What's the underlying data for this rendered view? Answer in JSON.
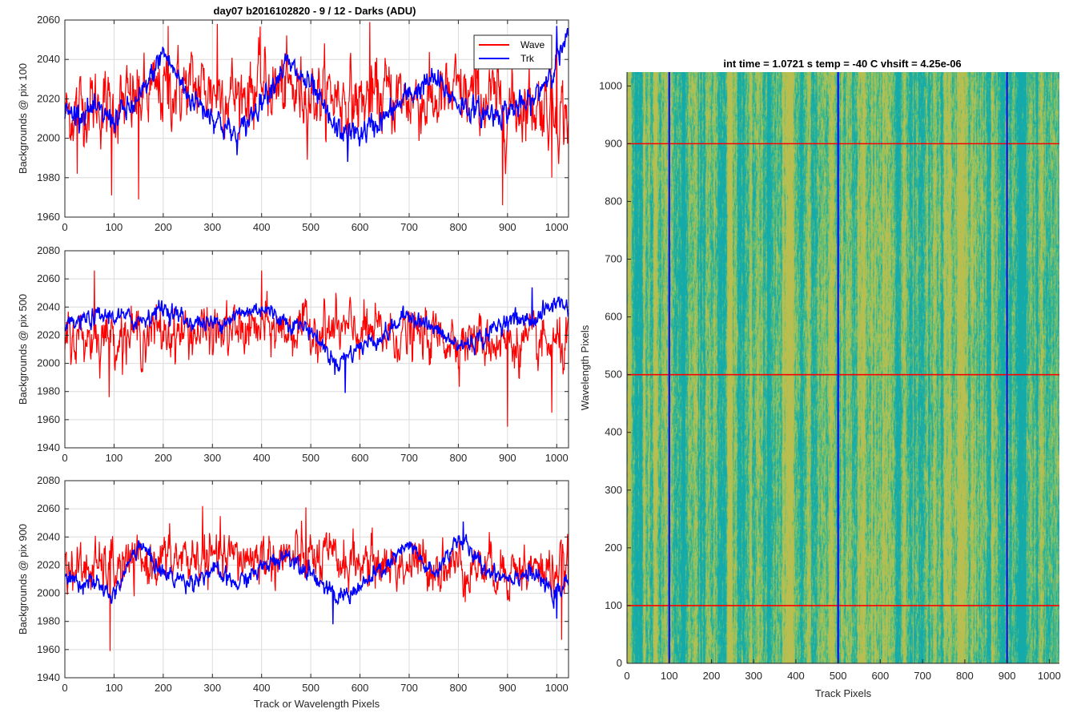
{
  "figure_title": "day07 b2016102820 - 9 / 12 - Darks (ADU)",
  "image_title": "int time = 1.0721 s    temp = -40 C    vhsift = 4.25e-06",
  "colors": {
    "wave": "#ff0000",
    "trk": "#0000ff",
    "grid": "#dcdcdc",
    "axis": "#262626"
  },
  "chart_data": [
    {
      "type": "line",
      "xlabel": "",
      "ylabel": "Backgrounds @ pix 100",
      "xlim": [
        0,
        1024
      ],
      "ylim": [
        1960,
        2060
      ],
      "xticks": [
        0,
        100,
        200,
        300,
        400,
        500,
        600,
        700,
        800,
        900,
        1000
      ],
      "yticks": [
        1960,
        1980,
        2000,
        2020,
        2040,
        2060
      ],
      "grid": true,
      "legend": {
        "placement": "top-right",
        "entries": [
          "Wave",
          "Trk"
        ]
      },
      "series": [
        {
          "name": "Wave",
          "color": "#ff0000",
          "x": [
            0,
            50,
            100,
            150,
            200,
            250,
            300,
            350,
            400,
            450,
            500,
            550,
            600,
            650,
            700,
            750,
            800,
            850,
            900,
            950,
            1000,
            1024
          ],
          "mean": [
            2012,
            2018,
            2015,
            2020,
            2024,
            2026,
            2025,
            2022,
            2028,
            2024,
            2023,
            2022,
            2018,
            2022,
            2020,
            2018,
            2022,
            2020,
            2016,
            2018,
            2015,
            2012
          ],
          "spread": 14,
          "spikes": [
            [
              25,
              1982
            ],
            [
              95,
              1971
            ],
            [
              150,
              1969
            ],
            [
              210,
              2057
            ],
            [
              310,
              2058
            ],
            [
              620,
              2059
            ],
            [
              890,
              1966
            ],
            [
              990,
              1980
            ],
            [
              1000,
              2053
            ]
          ]
        },
        {
          "name": "Trk",
          "color": "#0000ff",
          "x": [
            0,
            50,
            100,
            150,
            200,
            250,
            300,
            350,
            400,
            450,
            500,
            550,
            600,
            650,
            700,
            750,
            800,
            850,
            900,
            950,
            1000,
            1024
          ],
          "mean": [
            2012,
            2014,
            2010,
            2018,
            2044,
            2022,
            2012,
            2000,
            2020,
            2038,
            2026,
            2004,
            2002,
            2010,
            2022,
            2030,
            2018,
            2012,
            2014,
            2018,
            2040,
            2050
          ],
          "spread": 5,
          "spikes": [
            [
              575,
              1988
            ],
            [
              1000,
              2057
            ]
          ]
        }
      ]
    },
    {
      "type": "line",
      "xlabel": "",
      "ylabel": "Backgrounds @ pix 500",
      "xlim": [
        0,
        1024
      ],
      "ylim": [
        1940,
        2080
      ],
      "xticks": [
        0,
        100,
        200,
        300,
        400,
        500,
        600,
        700,
        800,
        900,
        1000
      ],
      "yticks": [
        1940,
        1960,
        1980,
        2000,
        2020,
        2040,
        2060,
        2080
      ],
      "grid": true,
      "series": [
        {
          "name": "Wave",
          "color": "#ff0000",
          "x": [
            0,
            100,
            200,
            300,
            400,
            500,
            600,
            700,
            800,
            900,
            1000,
            1024
          ],
          "mean": [
            2018,
            2020,
            2022,
            2022,
            2024,
            2024,
            2022,
            2020,
            2018,
            2015,
            2012,
            2012
          ],
          "spread": 14,
          "spikes": [
            [
              60,
              2066
            ],
            [
              90,
              1976
            ],
            [
              400,
              2066
            ],
            [
              900,
              1955
            ],
            [
              990,
              1965
            ]
          ]
        },
        {
          "name": "Trk",
          "color": "#0000ff",
          "x": [
            0,
            50,
            100,
            150,
            200,
            250,
            300,
            350,
            400,
            450,
            500,
            550,
            600,
            650,
            700,
            750,
            800,
            850,
            900,
            950,
            1000,
            1024
          ],
          "mean": [
            2025,
            2032,
            2034,
            2030,
            2040,
            2030,
            2028,
            2034,
            2040,
            2030,
            2024,
            2000,
            2012,
            2020,
            2036,
            2024,
            2012,
            2018,
            2032,
            2030,
            2044,
            2040
          ],
          "spread": 5,
          "spikes": [
            [
              570,
              1979
            ],
            [
              950,
              2054
            ]
          ]
        }
      ]
    },
    {
      "type": "line",
      "xlabel": "Track or Wavelength Pixels",
      "ylabel": "Backgrounds @ pix 900",
      "xlim": [
        0,
        1024
      ],
      "ylim": [
        1940,
        2080
      ],
      "xticks": [
        0,
        100,
        200,
        300,
        400,
        500,
        600,
        700,
        800,
        900,
        1000
      ],
      "yticks": [
        1940,
        1960,
        1980,
        2000,
        2020,
        2040,
        2060,
        2080
      ],
      "grid": true,
      "series": [
        {
          "name": "Wave",
          "color": "#ff0000",
          "x": [
            0,
            100,
            200,
            300,
            400,
            500,
            600,
            700,
            800,
            900,
            1000,
            1024
          ],
          "mean": [
            2016,
            2018,
            2024,
            2024,
            2026,
            2024,
            2022,
            2020,
            2020,
            2018,
            2016,
            2016
          ],
          "spread": 14,
          "spikes": [
            [
              92,
              1959
            ],
            [
              280,
              2062
            ],
            [
              490,
              2061
            ],
            [
              1010,
              1967
            ]
          ]
        },
        {
          "name": "Trk",
          "color": "#0000ff",
          "x": [
            0,
            50,
            100,
            150,
            200,
            250,
            300,
            350,
            400,
            450,
            500,
            550,
            600,
            650,
            700,
            750,
            800,
            850,
            900,
            950,
            1000,
            1024
          ],
          "mean": [
            2010,
            2008,
            1998,
            2036,
            2014,
            2008,
            2016,
            2006,
            2018,
            2028,
            2016,
            1996,
            2004,
            2018,
            2034,
            2012,
            2040,
            2018,
            2012,
            2014,
            1998,
            2010
          ],
          "spread": 5,
          "spikes": [
            [
              545,
              1978
            ],
            [
              810,
              2051
            ],
            [
              1000,
              1982
            ]
          ]
        }
      ]
    },
    {
      "type": "heatmap",
      "xlabel": "Track Pixels",
      "ylabel": "Wavelength Pixels",
      "xlim": [
        0,
        1024
      ],
      "ylim": [
        0,
        1024
      ],
      "xticks": [
        0,
        100,
        200,
        300,
        400,
        500,
        600,
        700,
        800,
        900,
        1000
      ],
      "yticks": [
        0,
        100,
        200,
        300,
        400,
        500,
        600,
        700,
        800,
        900,
        1000
      ],
      "colormap": "parula",
      "vertical_lines": {
        "color": "#0000ff",
        "x": [
          100,
          500,
          900
        ]
      },
      "horizontal_lines": {
        "color": "#ff0000",
        "y": [
          100,
          500,
          900
        ]
      }
    }
  ]
}
